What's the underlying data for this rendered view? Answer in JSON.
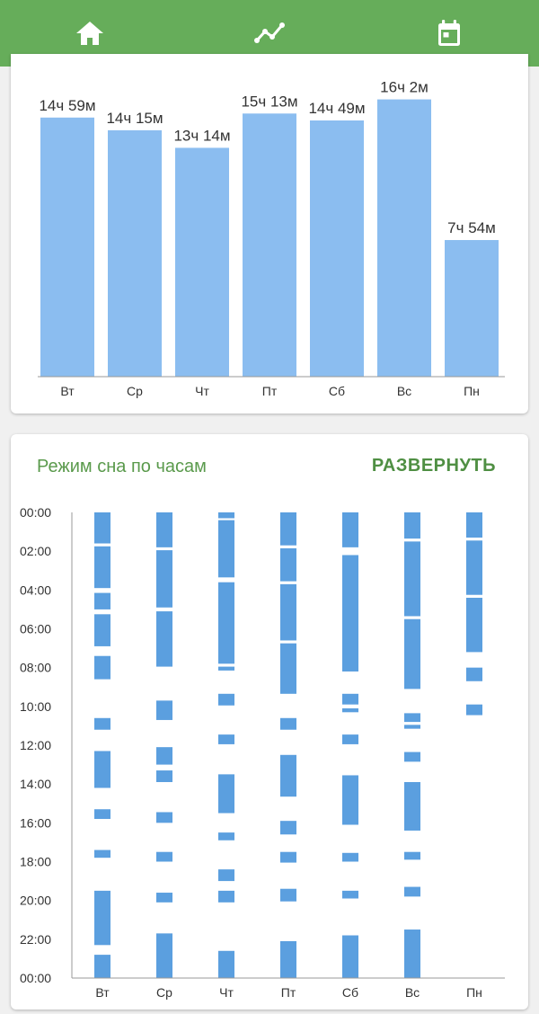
{
  "nav": {
    "tabs": [
      {
        "icon": "home-icon",
        "active": false
      },
      {
        "icon": "chart-line-icon",
        "active": true
      },
      {
        "icon": "calendar-icon",
        "active": false
      }
    ]
  },
  "colors": {
    "nav_bg": "#66ad5a",
    "bar_light": "#8bbdf0",
    "bar_dark": "#5b9fdf",
    "title_green": "#5a9a4c"
  },
  "sleep_hours": {
    "title": "Режим сна по часам",
    "expand_label": "РАЗВЕРНУТЬ"
  },
  "chart_data": [
    {
      "type": "bar",
      "categories": [
        "Вт",
        "Ср",
        "Чт",
        "Пт",
        "Сб",
        "Вс",
        "Пн"
      ],
      "values": [
        899,
        855,
        794,
        913,
        889,
        962,
        474
      ],
      "value_labels": [
        "14ч 59м",
        "14ч 15м",
        "13ч 14м",
        "15ч 13м",
        "14ч 49м",
        "16ч 2м",
        "7ч 54м"
      ],
      "unit": "minutes",
      "ylim": [
        0,
        1100
      ],
      "grid": false
    },
    {
      "type": "timeline",
      "categories": [
        "Вт",
        "Ср",
        "Чт",
        "Пт",
        "Сб",
        "Вс",
        "Пн"
      ],
      "y_ticks": [
        "00:00",
        "02:00",
        "04:00",
        "06:00",
        "08:00",
        "10:00",
        "12:00",
        "14:00",
        "16:00",
        "18:00",
        "20:00",
        "22:00",
        "00:00"
      ],
      "ylim_hours": [
        0,
        24
      ],
      "segments": [
        [
          [
            0,
            1.6
          ],
          [
            1.75,
            3.9
          ],
          [
            4.15,
            5.0
          ],
          [
            5.25,
            6.9
          ],
          [
            7.4,
            8.6
          ],
          [
            10.6,
            11.2
          ],
          [
            12.3,
            14.2
          ],
          [
            15.3,
            15.8
          ],
          [
            17.4,
            17.8
          ],
          [
            19.5,
            22.3
          ],
          [
            22.8,
            24
          ]
        ],
        [
          [
            0,
            1.8
          ],
          [
            1.95,
            4.9
          ],
          [
            5.1,
            7.95
          ],
          [
            9.7,
            10.7
          ],
          [
            12.1,
            13.0
          ],
          [
            13.3,
            13.9
          ],
          [
            15.45,
            16.0
          ],
          [
            17.5,
            18.0
          ],
          [
            19.6,
            20.1
          ],
          [
            21.7,
            24
          ]
        ],
        [
          [
            0,
            0.3
          ],
          [
            0.4,
            3.35
          ],
          [
            3.6,
            7.8
          ],
          [
            7.95,
            8.15
          ],
          [
            9.35,
            9.95
          ],
          [
            11.45,
            11.95
          ],
          [
            13.5,
            15.5
          ],
          [
            16.5,
            16.9
          ],
          [
            18.4,
            19.0
          ],
          [
            19.5,
            20.1
          ],
          [
            22.6,
            24
          ]
        ],
        [
          [
            0,
            1.7
          ],
          [
            1.85,
            3.55
          ],
          [
            3.7,
            6.6
          ],
          [
            6.75,
            9.35
          ],
          [
            10.6,
            11.2
          ],
          [
            12.5,
            14.65
          ],
          [
            15.9,
            16.6
          ],
          [
            17.5,
            18.05
          ],
          [
            19.4,
            20.05
          ],
          [
            22.1,
            24
          ]
        ],
        [
          [
            0,
            1.8
          ],
          [
            2.2,
            8.2
          ],
          [
            9.35,
            9.9
          ],
          [
            10.1,
            10.3
          ],
          [
            11.45,
            11.95
          ],
          [
            13.55,
            16.1
          ],
          [
            17.55,
            18.0
          ],
          [
            19.5,
            19.9
          ],
          [
            21.8,
            24
          ]
        ],
        [
          [
            0,
            1.35
          ],
          [
            1.5,
            5.35
          ],
          [
            5.5,
            9.1
          ],
          [
            10.35,
            10.8
          ],
          [
            10.95,
            11.15
          ],
          [
            12.35,
            12.85
          ],
          [
            13.9,
            16.4
          ],
          [
            17.5,
            17.9
          ],
          [
            19.3,
            19.8
          ],
          [
            21.5,
            24
          ]
        ],
        [
          [
            0,
            1.3
          ],
          [
            1.45,
            4.25
          ],
          [
            4.4,
            7.2
          ],
          [
            8.0,
            8.7
          ],
          [
            9.9,
            10.45
          ]
        ]
      ]
    }
  ]
}
